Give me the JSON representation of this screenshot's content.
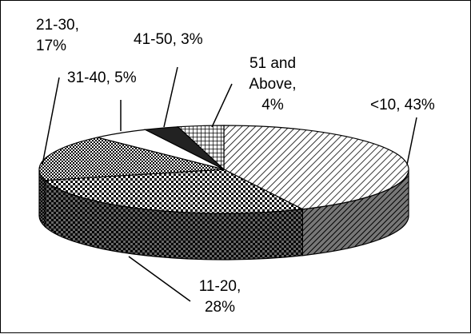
{
  "chart_data": {
    "type": "pie",
    "variant": "3d-exploded-pie",
    "title": "",
    "slices": [
      {
        "category": "<10",
        "value": 43,
        "label_lines": [
          "<10, 43%"
        ],
        "pattern": "diagonal-hatch"
      },
      {
        "category": "11-20",
        "value": 28,
        "label_lines": [
          "11-20,",
          "28%"
        ],
        "pattern": "checker"
      },
      {
        "category": "21-30",
        "value": 17,
        "label_lines": [
          "21-30,",
          "17%"
        ],
        "pattern": "diamond-check"
      },
      {
        "category": "31-40",
        "value": 5,
        "label_lines": [
          "31-40, 5%"
        ],
        "pattern": "white"
      },
      {
        "category": "41-50",
        "value": 3,
        "label_lines": [
          "41-50, 3%"
        ],
        "pattern": "black"
      },
      {
        "category": "51 and Above",
        "value": 4,
        "label_lines": [
          "51 and",
          "Above,",
          "4%"
        ],
        "pattern": "grid"
      }
    ],
    "legend": "none"
  }
}
